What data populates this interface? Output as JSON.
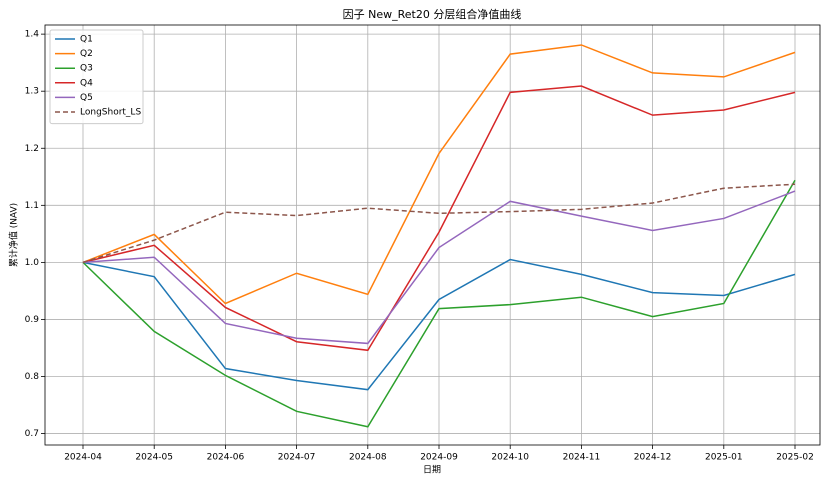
{
  "chart_data": {
    "type": "line",
    "title": "因子 New_Ret20 分层组合净值曲线",
    "xlabel": "日期",
    "ylabel": "累计净值 (NAV)",
    "x": [
      "2024-04",
      "2024-05",
      "2024-06",
      "2024-07",
      "2024-08",
      "2024-09",
      "2024-10",
      "2024-11",
      "2024-12",
      "2025-01",
      "2025-02"
    ],
    "series": [
      {
        "name": "Q1",
        "color": "#1f77b4",
        "linestyle": "solid",
        "values": [
          1.0,
          0.975,
          0.814,
          0.793,
          0.777,
          0.935,
          1.005,
          0.979,
          0.947,
          0.942,
          0.979
        ]
      },
      {
        "name": "Q2",
        "color": "#ff7f0e",
        "linestyle": "solid",
        "values": [
          1.0,
          1.049,
          0.928,
          0.981,
          0.944,
          1.191,
          1.365,
          1.381,
          1.332,
          1.325,
          1.368
        ]
      },
      {
        "name": "Q3",
        "color": "#2ca02c",
        "linestyle": "solid",
        "values": [
          1.0,
          0.879,
          0.802,
          0.739,
          0.712,
          0.919,
          0.926,
          0.939,
          0.905,
          0.928,
          1.144
        ]
      },
      {
        "name": "Q4",
        "color": "#d62728",
        "linestyle": "solid",
        "values": [
          1.0,
          1.03,
          0.921,
          0.861,
          0.846,
          1.053,
          1.298,
          1.309,
          1.258,
          1.267,
          1.298
        ]
      },
      {
        "name": "Q5",
        "color": "#9467bd",
        "linestyle": "solid",
        "values": [
          1.0,
          1.009,
          0.893,
          0.867,
          0.858,
          1.026,
          1.107,
          1.081,
          1.056,
          1.077,
          1.125
        ]
      },
      {
        "name": "LongShort_LS",
        "color": "#8c564b",
        "linestyle": "dashed",
        "values": [
          1.0,
          1.039,
          1.088,
          1.082,
          1.095,
          1.086,
          1.089,
          1.093,
          1.104,
          1.13,
          1.137
        ]
      }
    ],
    "ylim": [
      0.68,
      1.416
    ],
    "yticks": [
      0.7,
      0.8,
      0.9,
      {
        "value": 1.0,
        "label": "1.0"
      },
      1.1,
      1.2,
      1.3,
      1.4
    ],
    "grid": true,
    "legend": "upper-left"
  }
}
